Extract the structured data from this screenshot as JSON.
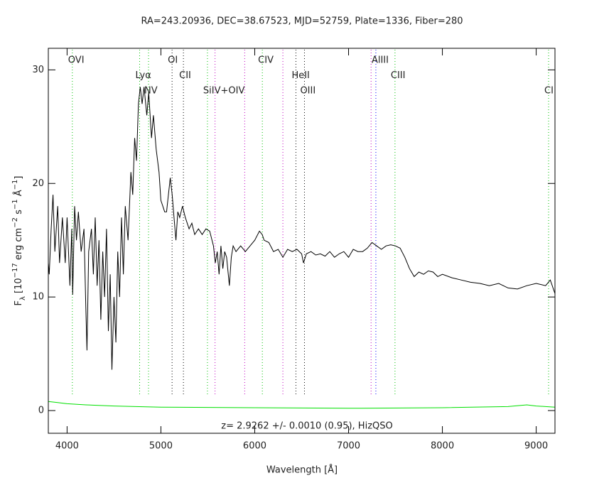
{
  "chart_data": {
    "type": "line",
    "title": "RA=243.20936, DEC=38.67523, MJD=52759, Plate=1336, Fiber=280",
    "xlabel": "Wavelength [Å]",
    "ylabel": [
      "F",
      "λ",
      " [10",
      "−17",
      " erg cm",
      "−2",
      " s",
      "−1",
      " Å",
      "−1",
      "]"
    ],
    "annotation": "z= 2.9262 +/- 0.0010 (0.95), HizQSO",
    "xlim": [
      3800,
      9200
    ],
    "ylim": [
      -2,
      31.9
    ],
    "xticks": [
      4000,
      5000,
      6000,
      7000,
      8000,
      9000
    ],
    "yticks": [
      0,
      10,
      20,
      30
    ],
    "series": [
      {
        "color": "#000000",
        "x": [
          3800,
          3810,
          3830,
          3850,
          3870,
          3900,
          3920,
          3950,
          3980,
          4000,
          4030,
          4050,
          4060,
          4080,
          4100,
          4120,
          4150,
          4180,
          4200,
          4212,
          4230,
          4260,
          4280,
          4300,
          4320,
          4340,
          4360,
          4380,
          4400,
          4420,
          4440,
          4460,
          4478,
          4500,
          4520,
          4540,
          4560,
          4580,
          4600,
          4620,
          4650,
          4680,
          4700,
          4720,
          4740,
          4760,
          4780,
          4800,
          4820,
          4850,
          4870,
          4900,
          4920,
          4950,
          4980,
          5000,
          5020,
          5040,
          5060,
          5080,
          5100,
          5120,
          5140,
          5160,
          5180,
          5200,
          5230,
          5260,
          5300,
          5330,
          5360,
          5400,
          5440,
          5480,
          5520,
          5560,
          5580,
          5600,
          5620,
          5640,
          5660,
          5680,
          5700,
          5730,
          5750,
          5770,
          5800,
          5850,
          5900,
          5950,
          6000,
          6050,
          6080,
          6100,
          6150,
          6200,
          6250,
          6300,
          6350,
          6400,
          6450,
          6500,
          6520,
          6550,
          6600,
          6650,
          6700,
          6750,
          6800,
          6850,
          6900,
          6950,
          7000,
          7050,
          7100,
          7150,
          7200,
          7250,
          7300,
          7350,
          7400,
          7450,
          7500,
          7550,
          7600,
          7650,
          7700,
          7750,
          7800,
          7850,
          7900,
          7950,
          8000,
          8100,
          8200,
          8300,
          8400,
          8500,
          8600,
          8700,
          8800,
          8900,
          9000,
          9100,
          9150,
          9200
        ],
        "values": [
          13,
          12,
          16,
          19,
          14,
          18,
          13,
          17,
          13,
          17,
          11,
          16,
          10.2,
          18,
          15,
          17.5,
          14,
          16,
          9,
          5.3,
          14,
          16,
          12,
          17,
          11,
          15,
          8,
          14,
          10,
          16,
          7,
          12,
          3.6,
          10,
          6,
          14,
          10,
          17,
          12,
          18,
          15,
          21,
          19,
          24,
          22,
          27,
          28.5,
          27,
          28.5,
          26,
          28,
          24,
          26,
          23,
          21,
          18.5,
          18,
          17.5,
          17.5,
          19,
          20.5,
          19,
          17,
          15,
          17.5,
          17,
          18,
          17,
          16,
          16.5,
          15.5,
          16,
          15.5,
          16,
          15.8,
          14.5,
          13,
          14,
          12,
          14.5,
          12.5,
          14,
          13.5,
          11,
          13.5,
          14.5,
          14,
          14.5,
          14,
          14.5,
          15,
          15.8,
          15.5,
          15,
          14.8,
          14,
          14.2,
          13.5,
          14.2,
          14,
          14.2,
          13.8,
          13,
          13.8,
          14,
          13.7,
          13.8,
          13.6,
          14,
          13.5,
          13.8,
          14,
          13.5,
          14.2,
          14,
          14,
          14.3,
          14.8,
          14.5,
          14.2,
          14.5,
          14.6,
          14.5,
          14.3,
          13.5,
          12.5,
          11.8,
          12.2,
          12,
          12.3,
          12.2,
          11.8,
          12,
          11.7,
          11.5,
          11.3,
          11.2,
          11,
          11.2,
          10.8,
          10.7,
          11,
          11.2,
          11,
          11.5,
          10.3
        ]
      },
      {
        "color": "#00e000",
        "x": [
          3800,
          3900,
          4000,
          4200,
          4500,
          5000,
          6000,
          7000,
          8000,
          8700,
          8900,
          9000,
          9200
        ],
        "values": [
          0.8,
          0.7,
          0.6,
          0.5,
          0.4,
          0.3,
          0.25,
          0.2,
          0.25,
          0.35,
          0.5,
          0.4,
          0.3
        ]
      }
    ],
    "lines": [
      {
        "wavelength": 4056,
        "label": "OVI",
        "color": "#00c000"
      },
      {
        "wavelength": 4773,
        "label": "Lyα",
        "color": "#00c000"
      },
      {
        "wavelength": 4868,
        "label": "NV",
        "color": "#00c000"
      },
      {
        "wavelength": 5119,
        "label": "OI",
        "color": "#000000"
      },
      {
        "wavelength": 5240,
        "label": "CII",
        "color": "#000000"
      },
      {
        "wavelength": 5496,
        "label": "SiIV+OIV",
        "color": "#00c000"
      },
      {
        "wavelength": 5577,
        "color": "#c000c0"
      },
      {
        "wavelength": 5893,
        "color": "#c000c0"
      },
      {
        "wavelength": 6081,
        "label": "CIV",
        "color": "#00c000"
      },
      {
        "wavelength": 6300,
        "color": "#c000c0"
      },
      {
        "wavelength": 6439,
        "label": "HeII",
        "color": "#000000"
      },
      {
        "wavelength": 6530,
        "label": "OIII",
        "color": "#000000"
      },
      {
        "wavelength": 7240,
        "color": "#c000c0"
      },
      {
        "wavelength": 7291,
        "label": "AlIII",
        "color": "#0000ff"
      },
      {
        "wavelength": 7495,
        "label": "CIII",
        "color": "#00c000"
      },
      {
        "wavelength": 9132,
        "label": "CI",
        "color": "#00c000"
      }
    ]
  }
}
